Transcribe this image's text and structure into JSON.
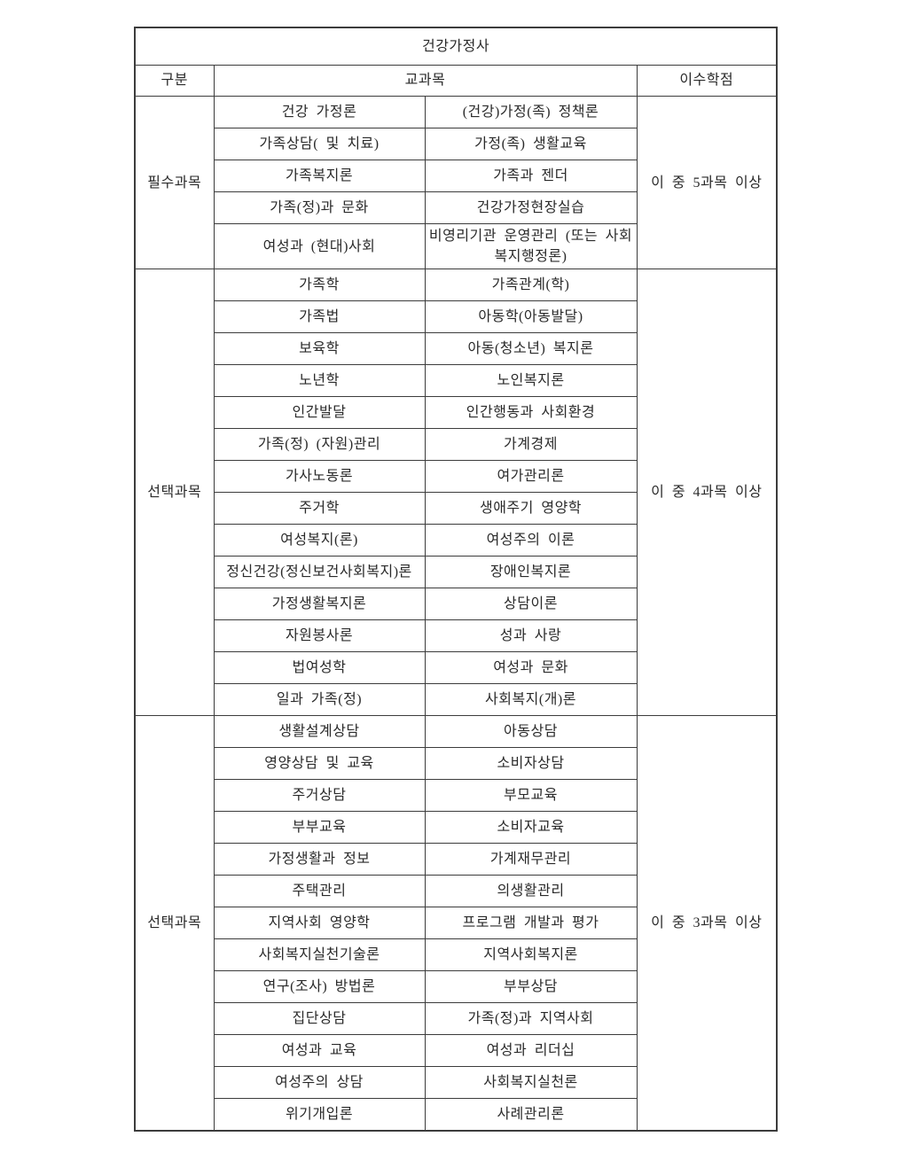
{
  "title": "건강가정사",
  "header": {
    "col_category": "구분",
    "col_subjects": "교과목",
    "col_credits": "이수학점"
  },
  "sections": [
    {
      "category": "필수과목",
      "credits": "이 중 5과목 이상",
      "rows": [
        [
          "건강 가정론",
          "(건강)가정(족) 정책론"
        ],
        [
          "가족상담( 및 치료)",
          "가정(족) 생활교육"
        ],
        [
          "가족복지론",
          "가족과 젠더"
        ],
        [
          "가족(정)과 문화",
          "건강가정현장실습"
        ],
        [
          "여성과 (현대)사회",
          "비영리기관 운영관리 (또는 사회복지행정론)"
        ]
      ]
    },
    {
      "category": "선택과목",
      "credits": "이 중 4과목 이상",
      "rows": [
        [
          "가족학",
          "가족관계(학)"
        ],
        [
          "가족법",
          "아동학(아동발달)"
        ],
        [
          "보육학",
          "아동(청소년) 복지론"
        ],
        [
          "노년학",
          "노인복지론"
        ],
        [
          "인간발달",
          "인간행동과 사회환경"
        ],
        [
          "가족(정) (자원)관리",
          "가계경제"
        ],
        [
          "가사노동론",
          "여가관리론"
        ],
        [
          "주거학",
          "생애주기 영양학"
        ],
        [
          "여성복지(론)",
          "여성주의 이론"
        ],
        [
          "정신건강(정신보건사회복지)론",
          "장애인복지론"
        ],
        [
          "가정생활복지론",
          "상담이론"
        ],
        [
          "자원봉사론",
          "성과 사랑"
        ],
        [
          "법여성학",
          "여성과 문화"
        ],
        [
          "일과 가족(정)",
          "사회복지(개)론"
        ]
      ]
    },
    {
      "category": "선택과목",
      "credits": "이 중 3과목 이상",
      "rows": [
        [
          "생활설계상담",
          "아동상담"
        ],
        [
          "영양상담 및 교육",
          "소비자상담"
        ],
        [
          "주거상담",
          "부모교육"
        ],
        [
          "부부교육",
          "소비자교육"
        ],
        [
          "가정생활과 정보",
          "가계재무관리"
        ],
        [
          "주택관리",
          "의생활관리"
        ],
        [
          "지역사회 영양학",
          "프로그램 개발과 평가"
        ],
        [
          "사회복지실천기술론",
          "지역사회복지론"
        ],
        [
          "연구(조사) 방법론",
          "부부상담"
        ],
        [
          "집단상담",
          "가족(정)과 지역사회"
        ],
        [
          "여성과 교육",
          "여성과 리더십"
        ],
        [
          "여성주의 상담",
          "사회복지실천론"
        ],
        [
          "위기개입론",
          "사례관리론"
        ]
      ]
    }
  ]
}
